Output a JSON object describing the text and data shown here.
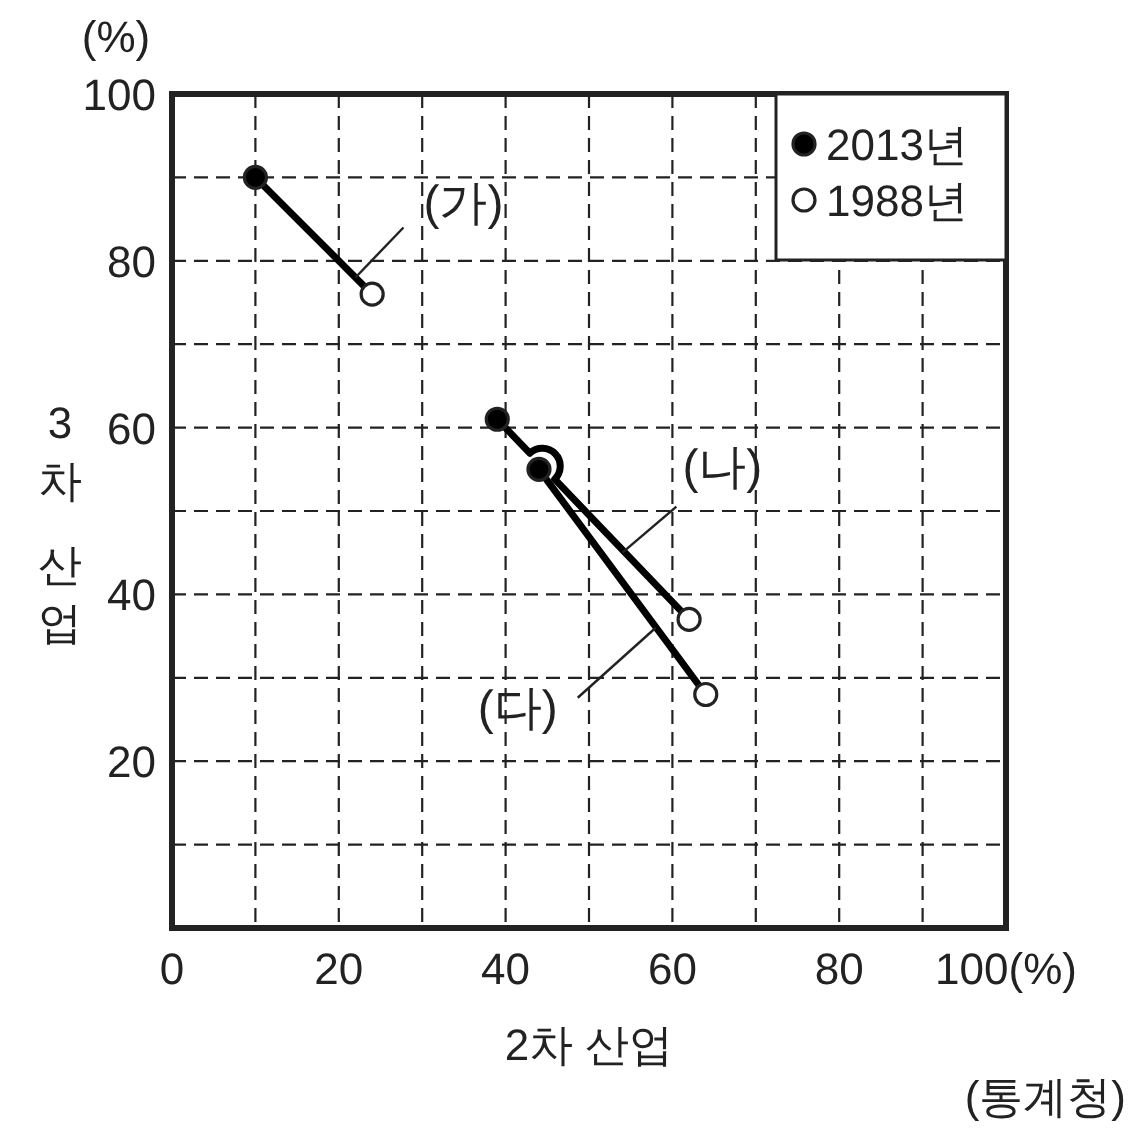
{
  "chart_data": {
    "type": "scatter",
    "xlabel": "2차 산업",
    "ylabel": "3차 산업",
    "xlim": [
      0,
      100
    ],
    "ylim": [
      0,
      100
    ],
    "xticks": [
      0,
      {
        "value": 10,
        "label": null
      },
      20,
      {
        "value": 30,
        "label": null
      },
      40,
      {
        "value": 50,
        "label": null
      },
      60,
      {
        "value": 70,
        "label": null
      },
      80,
      {
        "value": 90,
        "label": null
      },
      {
        "value": 100,
        "label": "100(%)"
      }
    ],
    "yticks": [
      {
        "value": 10,
        "label": null
      },
      20,
      {
        "value": 30,
        "label": null
      },
      40,
      {
        "value": 50,
        "label": null
      },
      60,
      {
        "value": 70,
        "label": null
      },
      80,
      {
        "value": 90,
        "label": null
      },
      100
    ],
    "grid": true,
    "legend": "top right",
    "series": [
      {
        "type": "line",
        "color": "#000000",
        "x": [
          10,
          24
        ],
        "values": [
          90,
          76
        ]
      },
      {
        "type": "line",
        "color": "#000000",
        "x": [
          39,
          62
        ],
        "values": [
          61,
          37
        ]
      },
      {
        "type": "line",
        "color": "#000000",
        "x": [
          44,
          64
        ],
        "values": [
          55,
          28
        ]
      },
      {
        "name": "2013년",
        "marker": "circle",
        "color": "#000000",
        "x": [
          10,
          39,
          44
        ],
        "values": [
          90,
          61,
          55
        ]
      },
      {
        "name": "1988년",
        "marker": "circle",
        "color": "#ffffff",
        "x": [
          24,
          62,
          64
        ],
        "values": [
          76,
          37,
          28
        ]
      }
    ],
    "annotations": [
      "(%)",
      {
        "text": "(가)",
        "x": 22,
        "y": 78
      },
      {
        "text": "(나)",
        "x": 54,
        "y": 45
      },
      {
        "text": "(다)",
        "x": 58,
        "y": 36
      },
      "(통계청)"
    ]
  }
}
